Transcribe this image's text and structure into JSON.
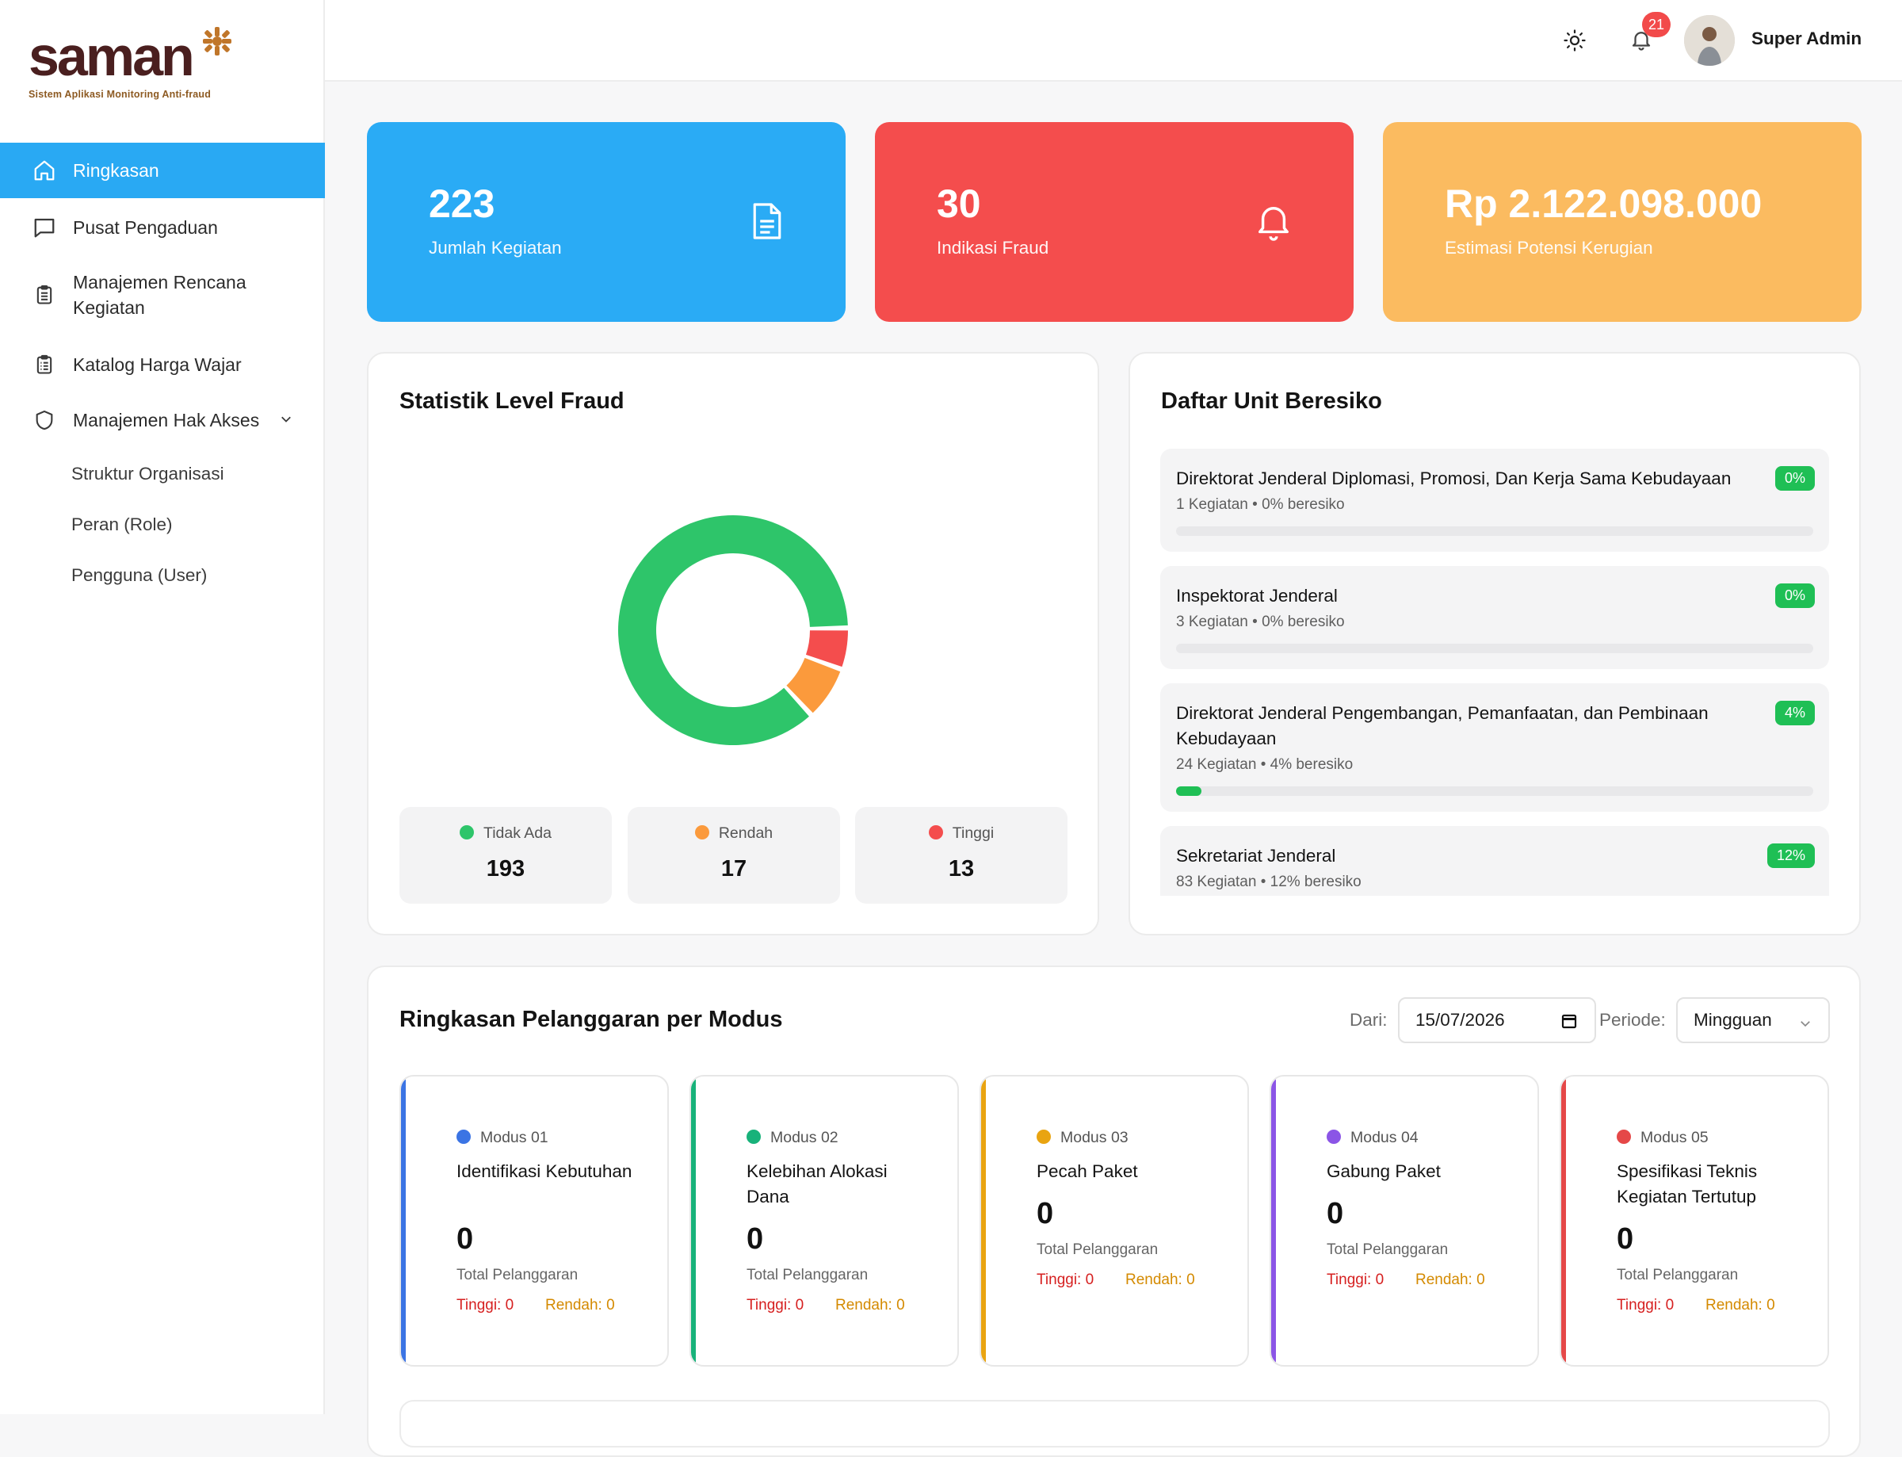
{
  "brand": {
    "name": "saman",
    "tagline": "Sistem Aplikasi Monitoring Anti-fraud"
  },
  "sidebar": {
    "items": [
      {
        "label": "Ringkasan",
        "icon": "home-icon",
        "active": true
      },
      {
        "label": "Pusat Pengaduan",
        "icon": "chat-icon"
      },
      {
        "label": "Manajemen Rencana Kegiatan",
        "icon": "clipboard-icon"
      },
      {
        "label": "Katalog Harga Wajar",
        "icon": "clipboard-list-icon"
      },
      {
        "label": "Manajemen Hak Akses",
        "icon": "shield-icon",
        "expanded": true
      }
    ],
    "subitems": [
      {
        "label": "Struktur Organisasi"
      },
      {
        "label": "Peran (Role)"
      },
      {
        "label": "Pengguna (User)"
      }
    ]
  },
  "topbar": {
    "theme_icon": "sun-icon",
    "notification_icon": "bell-icon",
    "notification_count": "21",
    "user_name": "Super Admin"
  },
  "stats": [
    {
      "value": "223",
      "label": "Jumlah Kegiatan",
      "color": "#2aabf5",
      "icon": "document-icon"
    },
    {
      "value": "30",
      "label": "Indikasi Fraud",
      "color": "#f44d4d",
      "icon": "bell-icon"
    },
    {
      "value": "Rp 2.122.098.000",
      "label": "Estimasi Potensi Kerugian",
      "color": "#fbbb60"
    }
  ],
  "fraud_stats": {
    "title": "Statistik Level Fraud",
    "levels": [
      {
        "label": "Tidak Ada",
        "value": "193",
        "color": "#2ec56a"
      },
      {
        "label": "Rendah",
        "value": "17",
        "color": "#fb9a3c"
      },
      {
        "label": "Tinggi",
        "value": "13",
        "color": "#f44d4d"
      }
    ]
  },
  "units": {
    "title": "Daftar Unit Beresiko",
    "items": [
      {
        "name": "Direktorat Jenderal Diplomasi, Promosi, Dan Kerja Sama Kebudayaan",
        "sub": "1 Kegiatan • 0% beresiko",
        "pct": "0%",
        "progress": 0
      },
      {
        "name": "Inspektorat Jenderal",
        "sub": "3 Kegiatan • 0% beresiko",
        "pct": "0%",
        "progress": 0
      },
      {
        "name": "Direktorat Jenderal Pengembangan, Pemanfaatan, dan Pembinaan Kebudayaan",
        "sub": "24 Kegiatan • 4% beresiko",
        "pct": "4%",
        "progress": 4
      },
      {
        "name": "Sekretariat Jenderal",
        "sub": "83 Kegiatan • 12% beresiko",
        "pct": "12%",
        "progress": 12
      }
    ]
  },
  "violations": {
    "title": "Ringkasan Pelanggaran per Modus",
    "from_label": "Dari:",
    "from_value": "15/07/2026",
    "period_label": "Periode:",
    "period_value": "Mingguan",
    "total_label": "Total Pelanggaran",
    "modus": [
      {
        "code": "Modus 01",
        "name": "Identifikasi Kebutuhan",
        "total": "0",
        "tinggi": "Tinggi: 0",
        "rendah": "Rendah: 0",
        "color": "#3b74e4"
      },
      {
        "code": "Modus 02",
        "name": "Kelebihan Alokasi Dana",
        "total": "0",
        "tinggi": "Tinggi: 0",
        "rendah": "Rendah: 0",
        "color": "#18b27a"
      },
      {
        "code": "Modus 03",
        "name": "Pecah Paket",
        "total": "0",
        "tinggi": "Tinggi: 0",
        "rendah": "Rendah: 0",
        "color": "#e9a411"
      },
      {
        "code": "Modus 04",
        "name": "Gabung Paket",
        "total": "0",
        "tinggi": "Tinggi: 0",
        "rendah": "Rendah: 0",
        "color": "#8b55e6"
      },
      {
        "code": "Modus 05",
        "name": "Spesifikasi Teknis Kegiatan Tertutup",
        "total": "0",
        "tinggi": "Tinggi: 0",
        "rendah": "Rendah: 0",
        "color": "#e54848"
      }
    ]
  }
}
